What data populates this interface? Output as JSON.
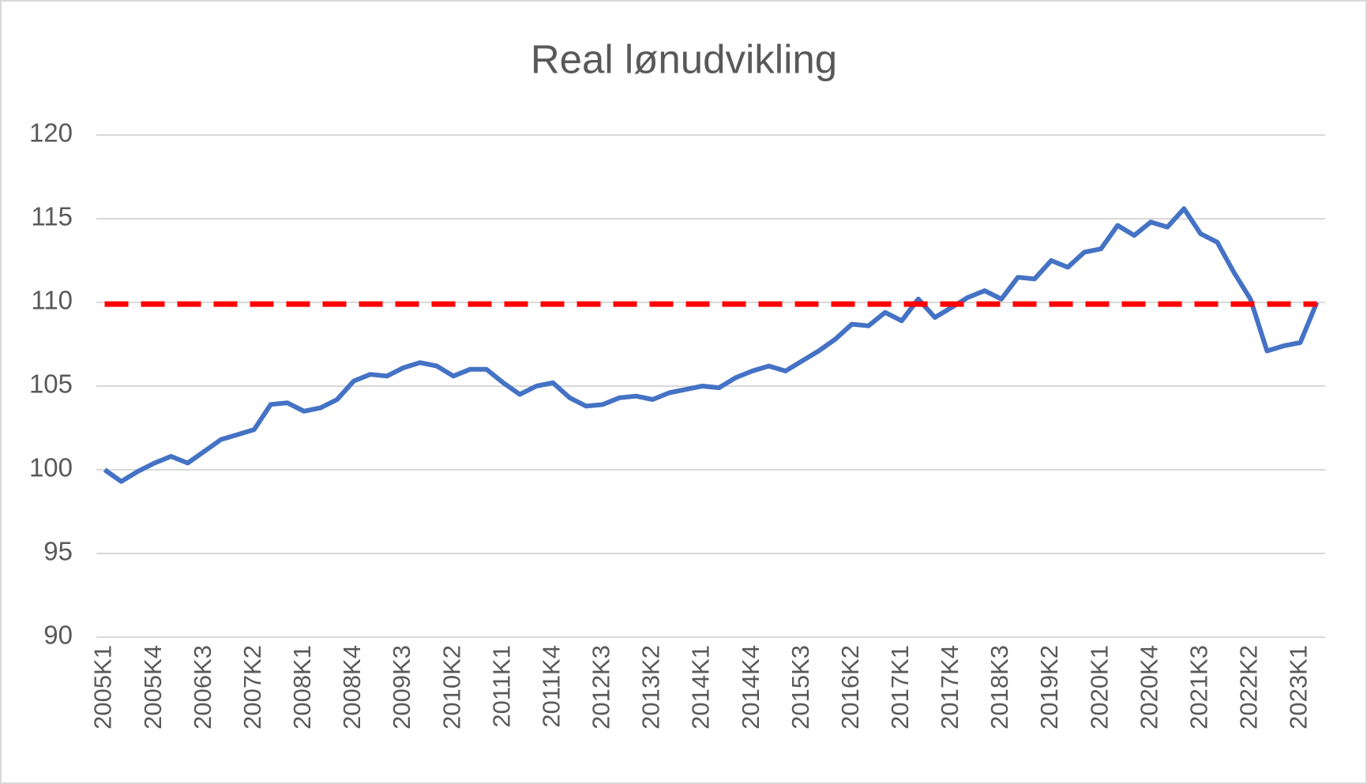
{
  "chart_data": {
    "type": "line",
    "title": "Real lønudvikling",
    "categories": [
      "2005K1",
      null,
      null,
      "2005K4",
      null,
      null,
      "2006K3",
      null,
      null,
      "2007K2",
      null,
      null,
      "2008K1",
      null,
      null,
      "2008K4",
      null,
      null,
      "2009K3",
      null,
      null,
      "2010K2",
      null,
      null,
      "2011K1",
      null,
      null,
      "2011K4",
      null,
      null,
      "2012K3",
      null,
      null,
      "2013K2",
      null,
      null,
      "2014K1",
      null,
      null,
      "2014K4",
      null,
      null,
      "2015K3",
      null,
      null,
      "2016K2",
      null,
      null,
      "2017K1",
      null,
      null,
      "2017K4",
      null,
      null,
      "2018K3",
      null,
      null,
      "2019K2",
      null,
      null,
      "2020K1",
      null,
      null,
      "2020K4",
      null,
      null,
      "2021K3",
      null,
      null,
      "2022K2",
      null,
      null,
      "2023K1",
      null
    ],
    "series": [
      {
        "color": "#4472c4",
        "dashed": false,
        "values": [
          100.0,
          99.3,
          99.9,
          100.4,
          100.8,
          100.4,
          101.1,
          101.8,
          102.1,
          102.4,
          103.9,
          104.0,
          103.5,
          103.7,
          104.2,
          105.3,
          105.7,
          105.6,
          106.1,
          106.4,
          106.2,
          105.6,
          106.0,
          106.0,
          105.2,
          104.5,
          105.0,
          105.2,
          104.3,
          103.8,
          103.9,
          104.3,
          104.4,
          104.2,
          104.6,
          104.8,
          105.0,
          104.9,
          105.5,
          105.9,
          106.2,
          105.9,
          106.5,
          107.1,
          107.8,
          108.7,
          108.6,
          109.4,
          108.9,
          110.2,
          109.1,
          109.7,
          110.3,
          110.7,
          110.2,
          111.5,
          111.4,
          112.5,
          112.1,
          113.0,
          113.2,
          114.6,
          114.0,
          114.8,
          114.5,
          115.6,
          114.1,
          113.6,
          111.8,
          110.2,
          107.1,
          107.4,
          107.6,
          110.0
        ]
      },
      {
        "color": "#ff0000",
        "dashed": true,
        "values": [
          109.9,
          109.9,
          109.9,
          109.9,
          109.9,
          109.9,
          109.9,
          109.9,
          109.9,
          109.9,
          109.9,
          109.9,
          109.9,
          109.9,
          109.9,
          109.9,
          109.9,
          109.9,
          109.9,
          109.9,
          109.9,
          109.9,
          109.9,
          109.9,
          109.9,
          109.9,
          109.9,
          109.9,
          109.9,
          109.9,
          109.9,
          109.9,
          109.9,
          109.9,
          109.9,
          109.9,
          109.9,
          109.9,
          109.9,
          109.9,
          109.9,
          109.9,
          109.9,
          109.9,
          109.9,
          109.9,
          109.9,
          109.9,
          109.9,
          109.9,
          109.9,
          109.9,
          109.9,
          109.9,
          109.9,
          109.9,
          109.9,
          109.9,
          109.9,
          109.9,
          109.9,
          109.9,
          109.9,
          109.9,
          109.9,
          109.9,
          109.9,
          109.9,
          109.9,
          109.9,
          109.9,
          109.9,
          109.9,
          109.9
        ]
      }
    ],
    "ylim": [
      90,
      120
    ],
    "yticks": [
      90,
      95,
      100,
      105,
      110,
      115,
      120
    ],
    "grid": true
  }
}
